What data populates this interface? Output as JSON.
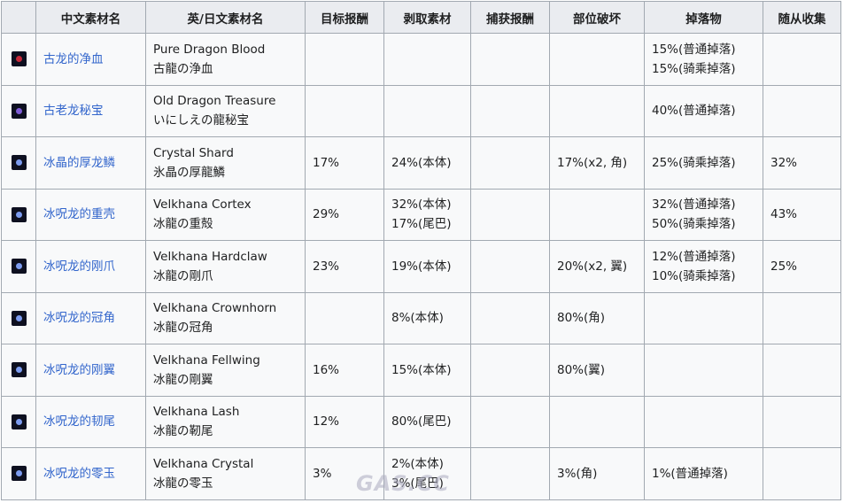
{
  "headers": [
    "",
    "中文素材名",
    "英/日文素材名",
    "目标报酬",
    "剥取素材",
    "捕获报酬",
    "部位破坏",
    "掉落物",
    "随从收集"
  ],
  "rows": [
    {
      "icon": "pure-dragon-blood-icon",
      "icon_class": "ic-red",
      "cn": "古龙的净血",
      "en_jp": [
        "Pure Dragon Blood",
        "古龍の浄血"
      ],
      "target": [],
      "carve": [],
      "capture": [],
      "break": [],
      "drop": [
        "15%(普通掉落)",
        "15%(骑乘掉落)"
      ],
      "palico": []
    },
    {
      "icon": "old-dragon-treasure-icon",
      "icon_class": "ic-purple",
      "cn": "古老龙秘宝",
      "en_jp": [
        "Old Dragon Treasure",
        "いにしえの龍秘宝"
      ],
      "target": [],
      "carve": [],
      "capture": [],
      "break": [],
      "drop": [
        "40%(普通掉落)"
      ],
      "palico": []
    },
    {
      "icon": "crystal-shard-icon",
      "icon_class": "ic-blue",
      "cn": "冰晶的厚龙鳞",
      "en_jp": [
        "Crystal Shard",
        "氷晶の厚龍鱗"
      ],
      "target": [
        "17%"
      ],
      "carve": [
        "24%(本体)"
      ],
      "capture": [],
      "break": [
        "17%(x2, 角)"
      ],
      "drop": [
        "25%(骑乘掉落)"
      ],
      "palico": [
        "32%"
      ]
    },
    {
      "icon": "velkhana-cortex-icon",
      "icon_class": "ic-blue",
      "cn": "冰呪龙的重壳",
      "en_jp": [
        "Velkhana Cortex",
        "冰龍の重殻"
      ],
      "target": [
        "29%"
      ],
      "carve": [
        "32%(本体)",
        "17%(尾巴)"
      ],
      "capture": [],
      "break": [],
      "drop": [
        "32%(普通掉落)",
        "50%(骑乘掉落)"
      ],
      "palico": [
        "43%"
      ]
    },
    {
      "icon": "velkhana-hardclaw-icon",
      "icon_class": "ic-blue",
      "cn": "冰呪龙的刚爪",
      "en_jp": [
        "Velkhana Hardclaw",
        "冰龍の剛爪"
      ],
      "target": [
        "23%"
      ],
      "carve": [
        "19%(本体)"
      ],
      "capture": [],
      "break": [
        "20%(x2, 翼)"
      ],
      "drop": [
        "12%(普通掉落)",
        "10%(骑乘掉落)"
      ],
      "palico": [
        "25%"
      ]
    },
    {
      "icon": "velkhana-crownhorn-icon",
      "icon_class": "ic-blue",
      "cn": "冰呪龙的冠角",
      "en_jp": [
        "Velkhana Crownhorn",
        "冰龍の冠角"
      ],
      "target": [],
      "carve": [
        "8%(本体)"
      ],
      "capture": [],
      "break": [
        "80%(角)"
      ],
      "drop": [],
      "palico": []
    },
    {
      "icon": "velkhana-fellwing-icon",
      "icon_class": "ic-blue",
      "cn": "冰呪龙的刚翼",
      "en_jp": [
        "Velkhana Fellwing",
        "冰龍の剛翼"
      ],
      "target": [
        "16%"
      ],
      "carve": [
        "15%(本体)"
      ],
      "capture": [],
      "break": [
        "80%(翼)"
      ],
      "drop": [],
      "palico": []
    },
    {
      "icon": "velkhana-lash-icon",
      "icon_class": "ic-blue",
      "cn": "冰呪龙的韧尾",
      "en_jp": [
        "Velkhana Lash",
        "冰龍の靭尾"
      ],
      "target": [
        "12%"
      ],
      "carve": [
        "80%(尾巴)"
      ],
      "capture": [],
      "break": [],
      "drop": [],
      "palico": []
    },
    {
      "icon": "velkhana-crystal-icon",
      "icon_class": "ic-blue",
      "cn": "冰呪龙的零玉",
      "en_jp": [
        "Velkhana Crystal",
        "冰龍の零玉"
      ],
      "target": [
        "3%"
      ],
      "carve": [
        "2%(本体)",
        "3%(尾巴)"
      ],
      "capture": [],
      "break": [
        "3%(角)"
      ],
      "drop": [
        "1%(普通掉落)"
      ],
      "palico": []
    }
  ],
  "watermark": "GAS.CC"
}
